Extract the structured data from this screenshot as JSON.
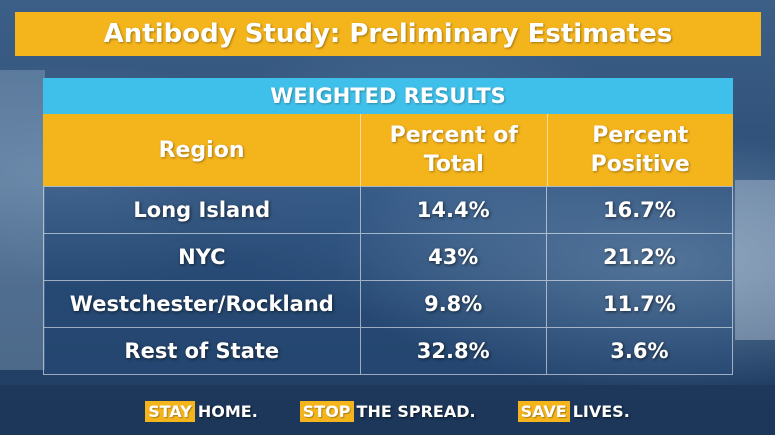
{
  "title": "Antibody Study: Preliminary Estimates",
  "chart_data": {
    "type": "table",
    "subtitle": "WEIGHTED RESULTS",
    "columns": [
      "Region",
      "Percent of Total",
      "Percent Positive"
    ],
    "rows": [
      {
        "region": "Long Island",
        "percent_of_total": "14.4%",
        "percent_positive": "16.7%"
      },
      {
        "region": "NYC",
        "percent_of_total": "43%",
        "percent_positive": "21.2%"
      },
      {
        "region": "Westchester/Rockland",
        "percent_of_total": "9.8%",
        "percent_positive": "11.7%"
      },
      {
        "region": "Rest of State",
        "percent_of_total": "32.8%",
        "percent_positive": "3.6%"
      }
    ]
  },
  "header_lines": {
    "percent_of_total": [
      "Percent of",
      "Total"
    ],
    "percent_positive": [
      "Percent",
      "Positive"
    ]
  },
  "footer": [
    {
      "highlight": "STAY",
      "rest": "HOME."
    },
    {
      "highlight": "STOP",
      "rest": "THE SPREAD."
    },
    {
      "highlight": "SAVE",
      "rest": "LIVES."
    }
  ],
  "colors": {
    "accent_gold": "#f4b41c",
    "accent_cyan": "#3fc0ea",
    "background_blue": "#25466f"
  }
}
